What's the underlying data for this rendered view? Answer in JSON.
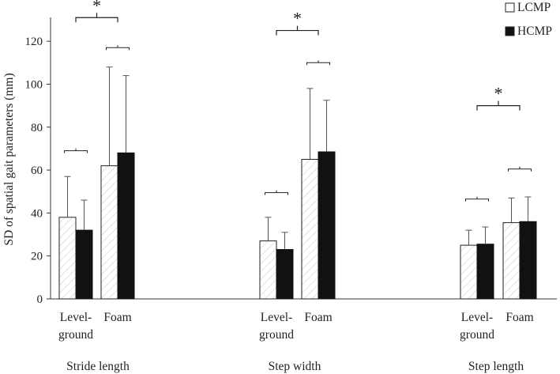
{
  "chart_data": {
    "type": "bar",
    "ylabel": "SD of spatial gait parameters (mm)",
    "ylim": [
      0,
      130
    ],
    "yticks": [
      0,
      20,
      40,
      60,
      80,
      100,
      120
    ],
    "grid": false,
    "legend_position": "top-right",
    "groups": [
      {
        "label": "Stride length",
        "categories": [
          "Level-\nground",
          "Foam"
        ]
      },
      {
        "label": "Step width",
        "categories": [
          "Level-\nground",
          "Foam"
        ]
      },
      {
        "label": "Step length",
        "categories": [
          "Level-\nground",
          "Foam"
        ]
      }
    ],
    "series": [
      {
        "name": "LCMP",
        "pattern": "hatched",
        "values": [
          38,
          62,
          27,
          65,
          25,
          35.5
        ],
        "sd": [
          19,
          46,
          11,
          33,
          7,
          11.5
        ]
      },
      {
        "name": "HCMP",
        "pattern": "solid",
        "values": [
          32,
          68,
          23,
          68.5,
          25.5,
          36
        ],
        "sd": [
          14,
          36,
          8,
          24,
          8,
          11.5
        ]
      }
    ],
    "annotations": {
      "pair_brackets_y": [
        69,
        117,
        49.5,
        110,
        46.5,
        60.5
      ],
      "significance": [
        {
          "group": 0,
          "text": "*",
          "y": 131
        },
        {
          "group": 1,
          "text": "*",
          "y": 125
        },
        {
          "group": 2,
          "text": "*",
          "y": 90
        }
      ]
    }
  },
  "colors": {
    "axis": "#333333",
    "hcmp_fill": "#111111",
    "lcmp_fill": "#ffffff",
    "hatch": "#cfcfcf"
  }
}
